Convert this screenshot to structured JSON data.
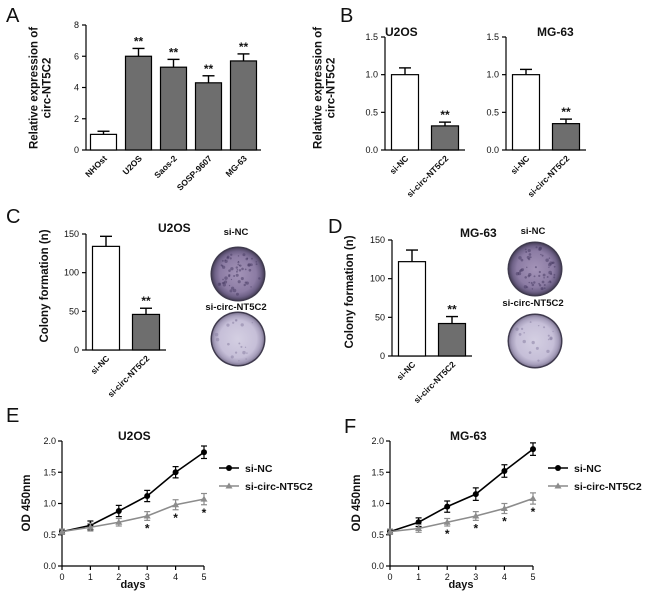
{
  "panels": {
    "A": {
      "letter": "A",
      "type": "bar",
      "title": "",
      "ylabel_lines": [
        "Relative expression of",
        "circ-NT5C2"
      ],
      "categories": [
        "NHOst",
        "U2OS",
        "Saos-2",
        "SOSP-9607",
        "MG-63"
      ],
      "values": [
        1.0,
        6.0,
        5.3,
        4.3,
        5.7
      ],
      "errors": [
        0.2,
        0.5,
        0.5,
        0.45,
        0.45
      ],
      "fills": [
        "#ffffff",
        "#6e6e6e",
        "#6e6e6e",
        "#6e6e6e",
        "#6e6e6e"
      ],
      "sig": [
        "",
        "**",
        "**",
        "**",
        "**"
      ],
      "yticks": [
        0,
        2,
        4,
        6,
        8
      ],
      "ylim": [
        0,
        8
      ]
    },
    "B1": {
      "letter": "B",
      "type": "bar",
      "title": "U2OS",
      "ylabel_lines": [
        "Relative expression of",
        "circ-NT5C2"
      ],
      "categories": [
        "si-NC",
        "si-circ-NT5C2"
      ],
      "values": [
        1.0,
        0.32
      ],
      "errors": [
        0.09,
        0.05
      ],
      "fills": [
        "#ffffff",
        "#6e6e6e"
      ],
      "sig": [
        "",
        "**"
      ],
      "yticks": [
        "0.0",
        "0.5",
        "1.0",
        "1.5"
      ],
      "ylim": [
        0,
        1.5
      ]
    },
    "B2": {
      "letter": "",
      "type": "bar",
      "title": "MG-63",
      "ylabel_lines": [],
      "categories": [
        "si-NC",
        "si-circ-NT5C2"
      ],
      "values": [
        1.0,
        0.35
      ],
      "errors": [
        0.07,
        0.06
      ],
      "fills": [
        "#ffffff",
        "#6e6e6e"
      ],
      "sig": [
        "",
        "**"
      ],
      "yticks": [
        "0.0",
        "0.5",
        "1.0",
        "1.5"
      ],
      "ylim": [
        0,
        1.5
      ]
    },
    "C": {
      "letter": "C",
      "type": "bar",
      "title": "U2OS",
      "ylabel_lines": [
        "Colony formation (n)"
      ],
      "categories": [
        "si-NC",
        "si-circ-NT5C2"
      ],
      "values": [
        134,
        46
      ],
      "errors": [
        13,
        8
      ],
      "fills": [
        "#ffffff",
        "#6e6e6e"
      ],
      "sig": [
        "",
        "**"
      ],
      "yticks": [
        0,
        50,
        100,
        150
      ],
      "ylim": [
        0,
        150
      ],
      "image_labels": [
        "si-NC",
        "si-circ-NT5C2"
      ]
    },
    "D": {
      "letter": "D",
      "type": "bar",
      "title": "MG-63",
      "ylabel_lines": [
        "Colony formation (n)"
      ],
      "categories": [
        "si-NC",
        "si-circ-NT5C2"
      ],
      "values": [
        122,
        42
      ],
      "errors": [
        15,
        9
      ],
      "fills": [
        "#ffffff",
        "#6e6e6e"
      ],
      "sig": [
        "",
        "**"
      ],
      "yticks": [
        0,
        50,
        100,
        150
      ],
      "ylim": [
        0,
        150
      ],
      "image_labels": [
        "si-NC",
        "si-circ-NT5C2"
      ]
    },
    "E": {
      "letter": "E",
      "type": "line",
      "title": "U2OS",
      "ylabel": "OD 450nm",
      "xlabel": "days",
      "x": [
        0,
        1,
        2,
        3,
        4,
        5
      ],
      "xticks": [
        0,
        1,
        2,
        3,
        4,
        5
      ],
      "yticks": [
        "0.0",
        "0.5",
        "1.0",
        "1.5",
        "2.0"
      ],
      "ylim": [
        0,
        2.0
      ],
      "series": [
        {
          "name": "si-NC",
          "values": [
            0.55,
            0.65,
            0.88,
            1.12,
            1.5,
            1.82
          ],
          "errors": [
            0.04,
            0.07,
            0.09,
            0.09,
            0.09,
            0.1
          ],
          "color": "#000000",
          "marker": "circle"
        },
        {
          "name": "si-circ-NT5C2",
          "values": [
            0.55,
            0.62,
            0.7,
            0.8,
            0.98,
            1.07
          ],
          "errors": [
            0.04,
            0.06,
            0.06,
            0.07,
            0.08,
            0.09
          ],
          "color": "#8c8c8c",
          "marker": "triangle"
        }
      ],
      "sig": [
        "",
        "",
        "",
        "*",
        "*",
        "*"
      ]
    },
    "F": {
      "letter": "F",
      "type": "line",
      "title": "MG-63",
      "ylabel": "OD 450nm",
      "xlabel": "days",
      "x": [
        0,
        1,
        2,
        3,
        4,
        5
      ],
      "xticks": [
        0,
        1,
        2,
        3,
        4,
        5
      ],
      "yticks": [
        "0.0",
        "0.5",
        "1.0",
        "1.5",
        "2.0"
      ],
      "ylim": [
        0,
        2.0
      ],
      "series": [
        {
          "name": "si-NC",
          "values": [
            0.55,
            0.7,
            0.95,
            1.15,
            1.52,
            1.87
          ],
          "errors": [
            0.04,
            0.07,
            0.09,
            0.1,
            0.1,
            0.1
          ],
          "color": "#000000",
          "marker": "circle"
        },
        {
          "name": "si-circ-NT5C2",
          "values": [
            0.55,
            0.6,
            0.7,
            0.8,
            0.92,
            1.08
          ],
          "errors": [
            0.04,
            0.06,
            0.06,
            0.07,
            0.08,
            0.09
          ],
          "color": "#8c8c8c",
          "marker": "triangle"
        }
      ],
      "sig": [
        "",
        "",
        "*",
        "*",
        "*",
        "*"
      ]
    }
  },
  "chart_data": [
    {
      "type": "bar",
      "panel": "A",
      "categories": [
        "NHOst",
        "U2OS",
        "Saos-2",
        "SOSP-9607",
        "MG-63"
      ],
      "values": [
        1.0,
        6.0,
        5.3,
        4.3,
        5.7
      ],
      "ylabel": "Relative expression of circ-NT5C2",
      "ylim": [
        0,
        8
      ]
    },
    {
      "type": "bar",
      "panel": "B",
      "title": "U2OS",
      "categories": [
        "si-NC",
        "si-circ-NT5C2"
      ],
      "values": [
        1.0,
        0.32
      ],
      "ylabel": "Relative expression of circ-NT5C2",
      "ylim": [
        0,
        1.5
      ]
    },
    {
      "type": "bar",
      "panel": "B",
      "title": "MG-63",
      "categories": [
        "si-NC",
        "si-circ-NT5C2"
      ],
      "values": [
        1.0,
        0.35
      ],
      "ylim": [
        0,
        1.5
      ]
    },
    {
      "type": "bar",
      "panel": "C",
      "title": "U2OS",
      "categories": [
        "si-NC",
        "si-circ-NT5C2"
      ],
      "values": [
        134,
        46
      ],
      "ylabel": "Colony formation (n)",
      "ylim": [
        0,
        150
      ]
    },
    {
      "type": "bar",
      "panel": "D",
      "title": "MG-63",
      "categories": [
        "si-NC",
        "si-circ-NT5C2"
      ],
      "values": [
        122,
        42
      ],
      "ylabel": "Colony formation (n)",
      "ylim": [
        0,
        150
      ]
    },
    {
      "type": "line",
      "panel": "E",
      "title": "U2OS",
      "x": [
        0,
        1,
        2,
        3,
        4,
        5
      ],
      "series": [
        {
          "name": "si-NC",
          "values": [
            0.55,
            0.65,
            0.88,
            1.12,
            1.5,
            1.82
          ]
        },
        {
          "name": "si-circ-NT5C2",
          "values": [
            0.55,
            0.62,
            0.7,
            0.8,
            0.98,
            1.07
          ]
        }
      ],
      "xlabel": "days",
      "ylabel": "OD 450nm",
      "ylim": [
        0,
        2.0
      ]
    },
    {
      "type": "line",
      "panel": "F",
      "title": "MG-63",
      "x": [
        0,
        1,
        2,
        3,
        4,
        5
      ],
      "series": [
        {
          "name": "si-NC",
          "values": [
            0.55,
            0.7,
            0.95,
            1.15,
            1.52,
            1.87
          ]
        },
        {
          "name": "si-circ-NT5C2",
          "values": [
            0.55,
            0.6,
            0.7,
            0.8,
            0.92,
            1.08
          ]
        }
      ],
      "xlabel": "days",
      "ylabel": "OD 450nm",
      "ylim": [
        0,
        2.0
      ]
    }
  ]
}
